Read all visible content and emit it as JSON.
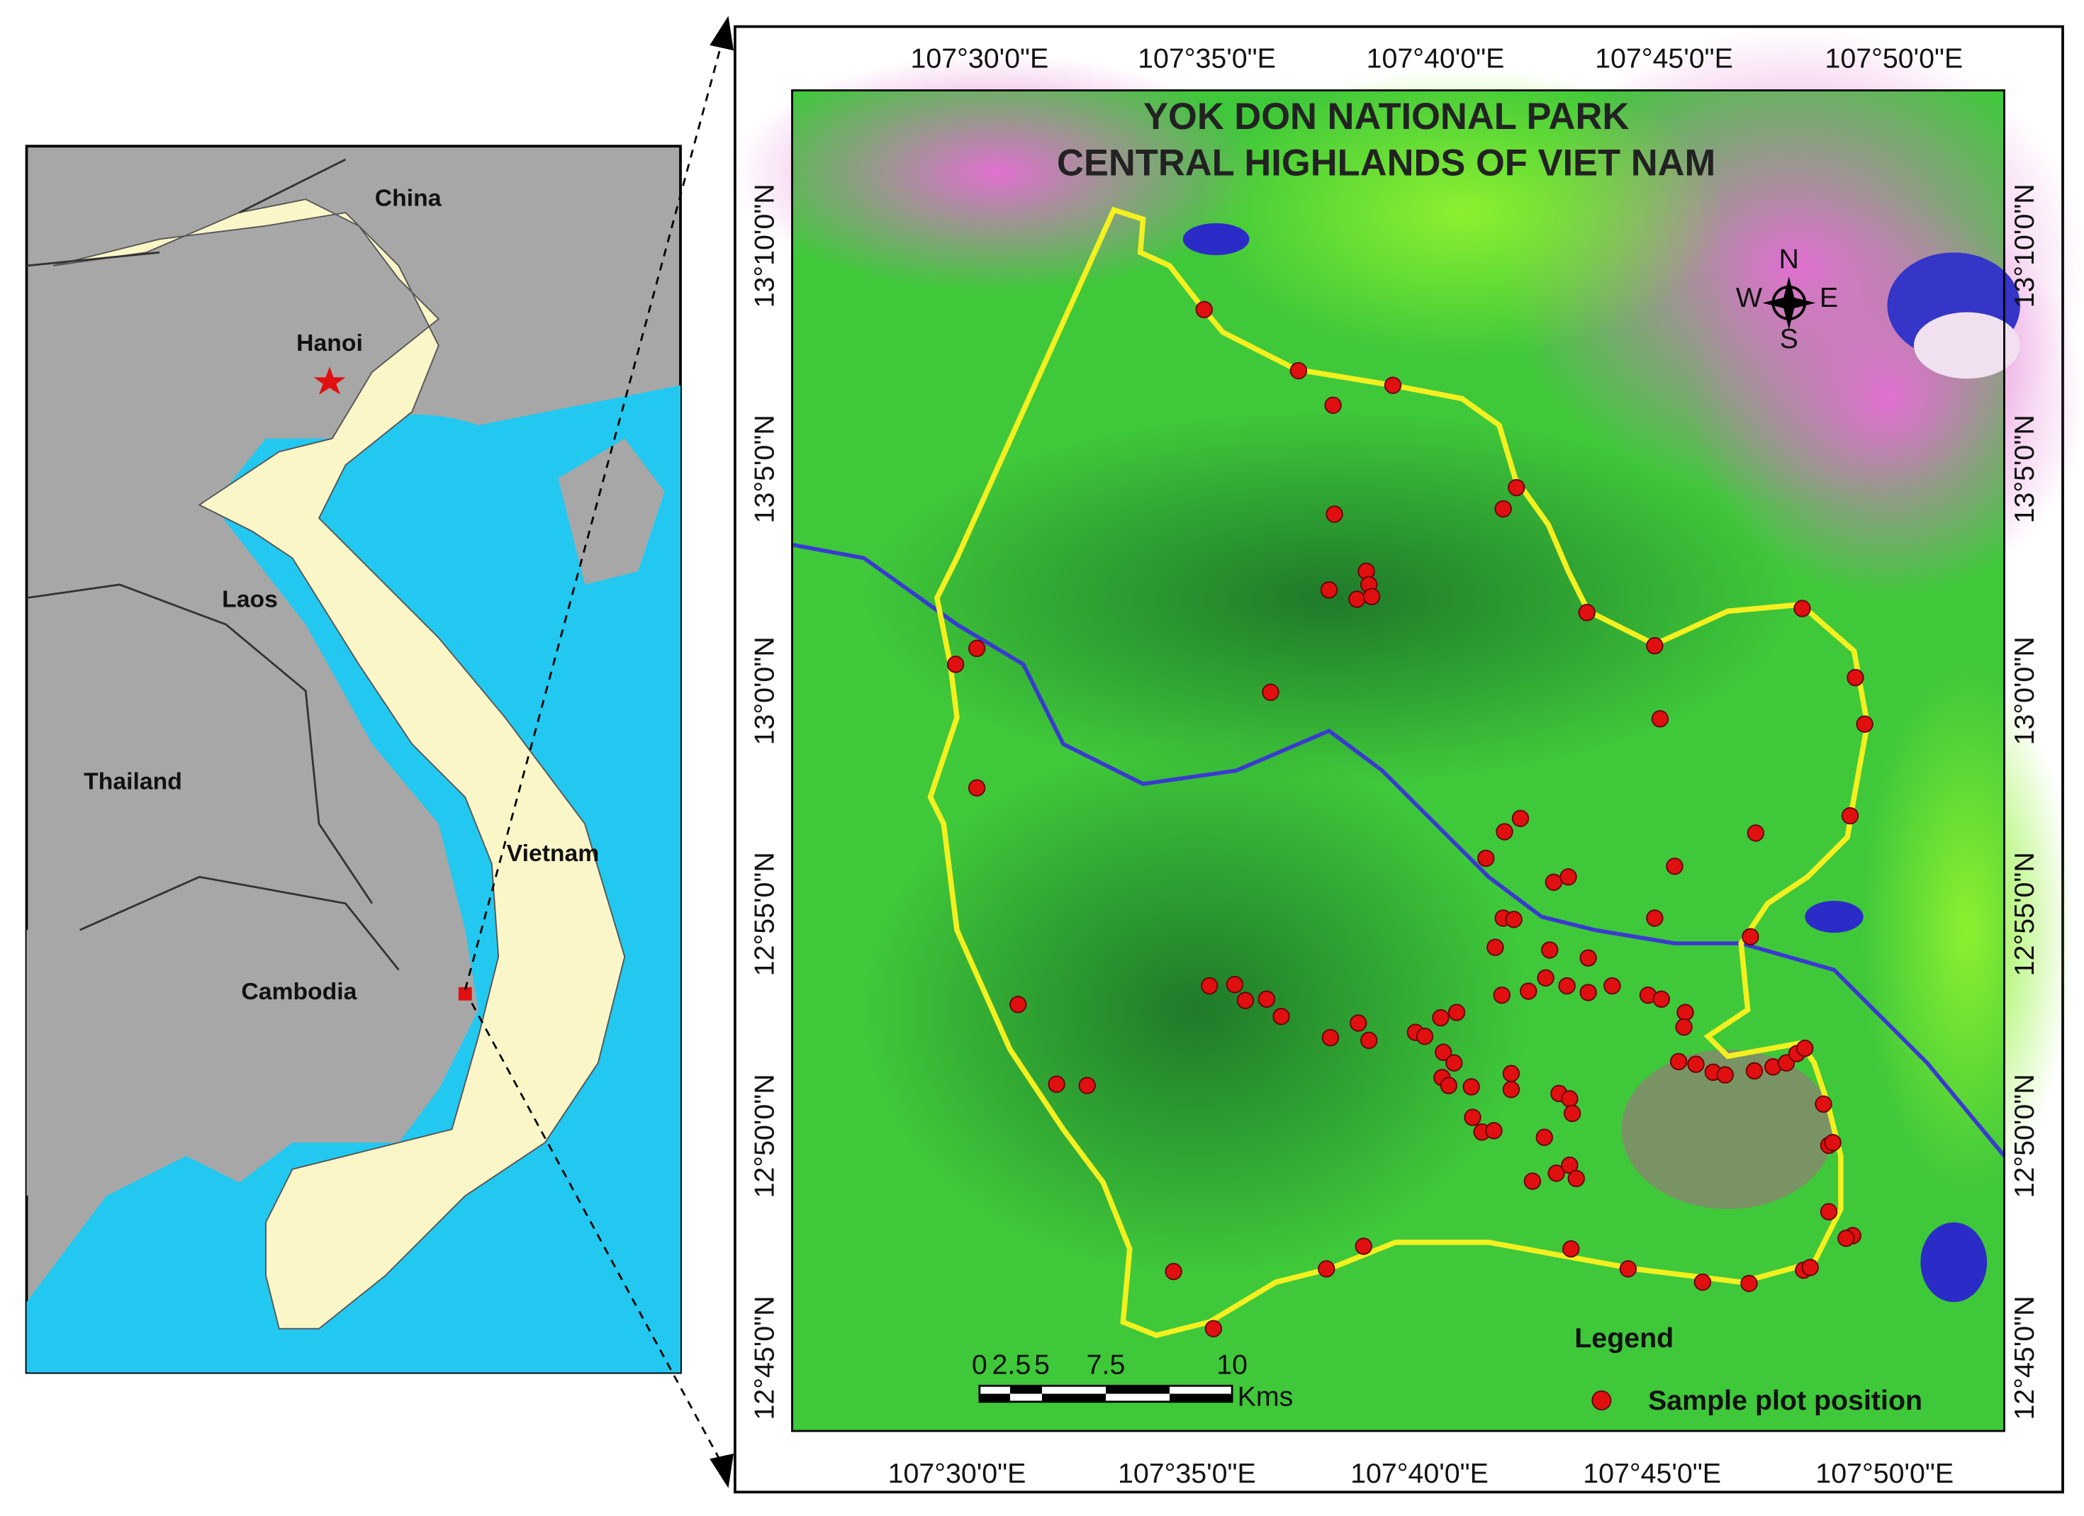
{
  "inset_map": {
    "labels": [
      "China",
      "Hanoi",
      "Laos",
      "Thailand",
      "Vietnam",
      "Cambodia"
    ]
  },
  "main_map": {
    "title": [
      "YOK DON NATIONAL PARK",
      "CENTRAL HIGHLANDS OF VIET NAM"
    ],
    "longitude_labels": [
      "107°30'0\"E",
      "107°35'0\"E",
      "107°40'0\"E",
      "107°45'0\"E",
      "107°50'0\"E"
    ],
    "latitude_labels": [
      "13°10'0\"N",
      "13°5'0\"N",
      "13°0'0\"N",
      "12°55'0\"N",
      "12°50'0\"N",
      "12°45'0\"N"
    ],
    "compass": [
      "N",
      "E",
      "S",
      "W"
    ],
    "scale_bar": {
      "ticks": [
        0,
        2.5,
        5,
        7.5,
        10
      ],
      "unit": "Kms"
    },
    "legend": {
      "title": "Legend",
      "entries": [
        "Sample plot position"
      ]
    }
  }
}
